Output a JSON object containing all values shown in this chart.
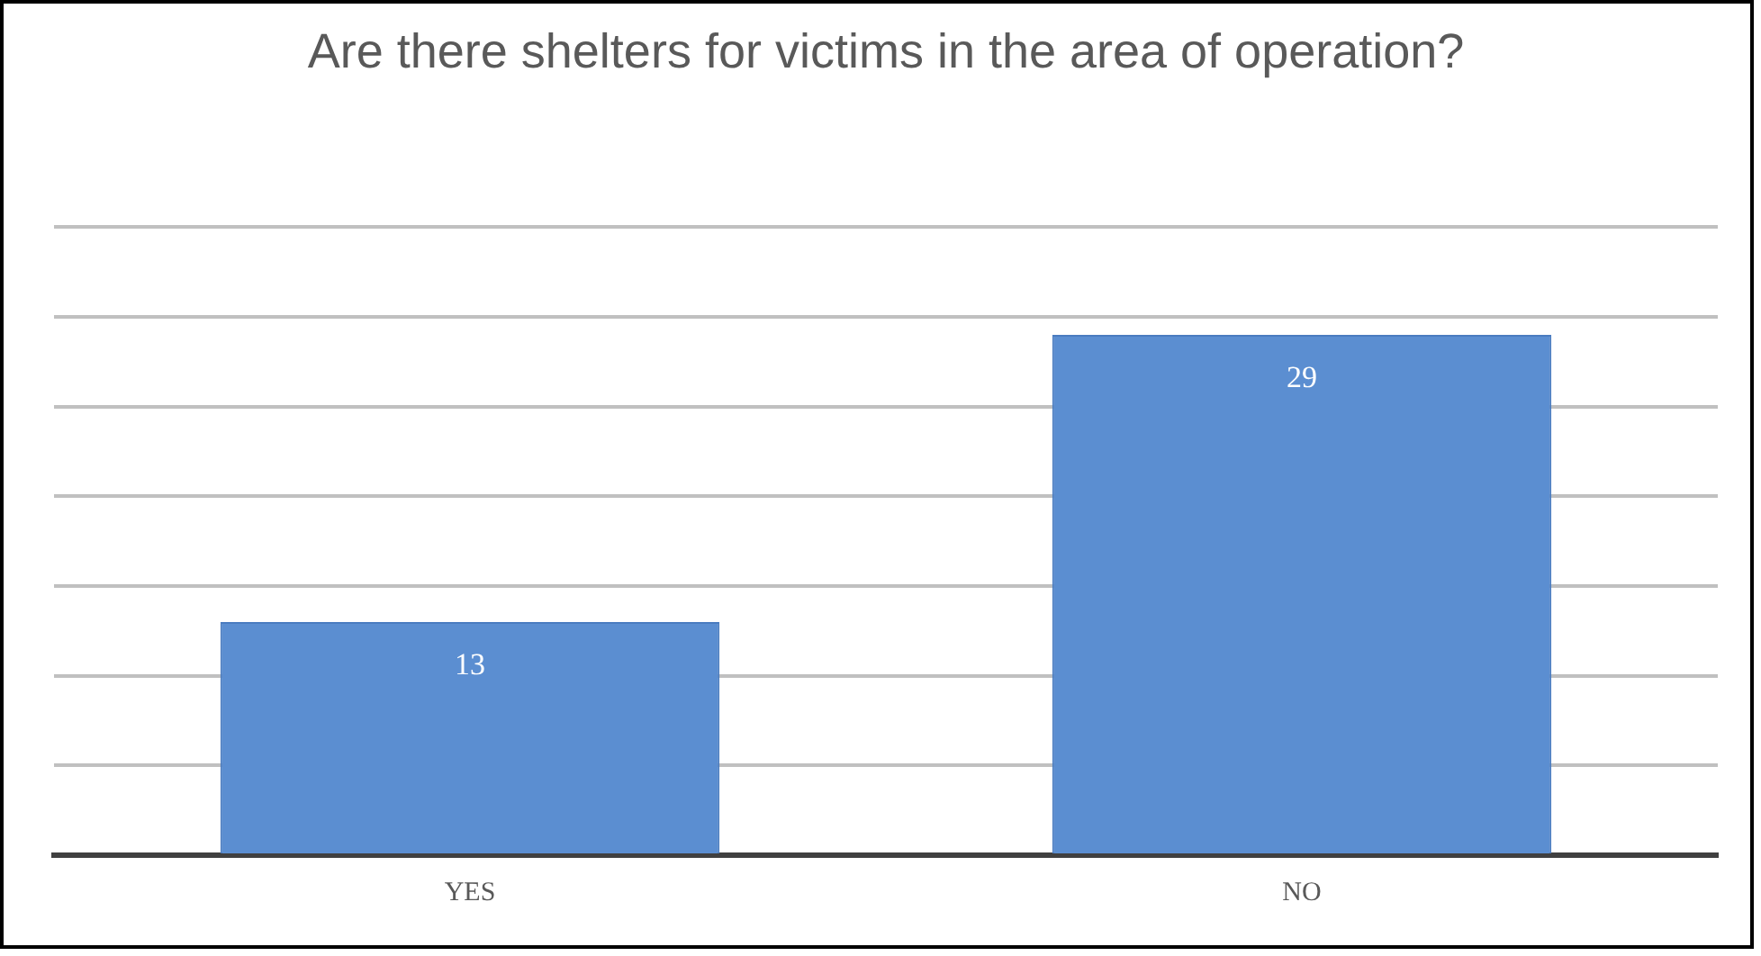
{
  "chart_data": {
    "type": "bar",
    "title": "Are there shelters for victims in the area of operation?",
    "categories": [
      "YES",
      "NO"
    ],
    "values": [
      13,
      29
    ],
    "color": "#5b8ed1",
    "grid": "y",
    "tick_labels": "x",
    "data_labels": true
  }
}
